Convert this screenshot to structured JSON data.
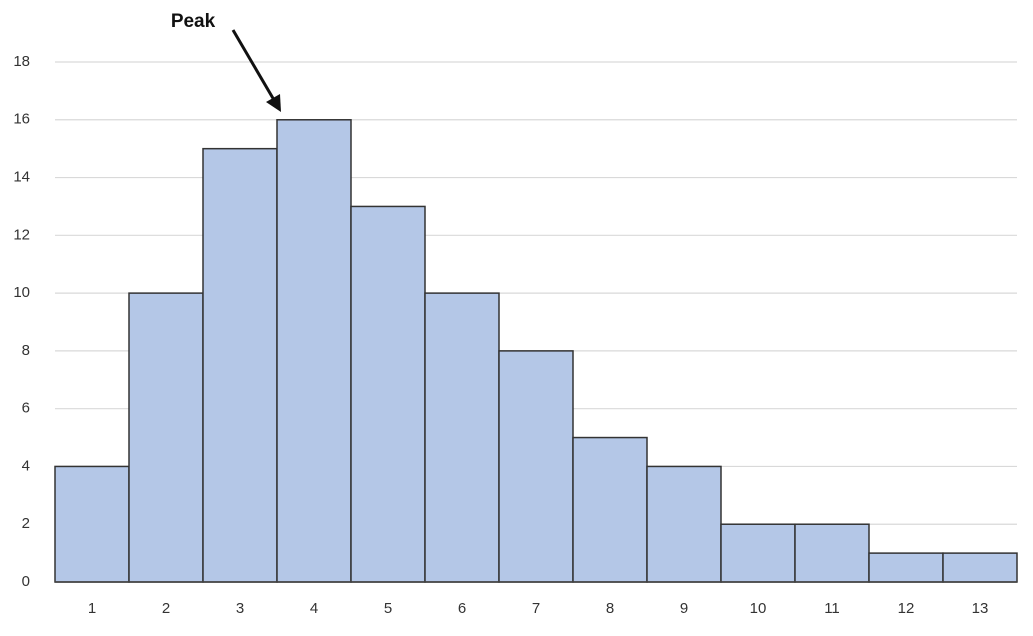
{
  "chart_data": {
    "type": "bar",
    "annotation": "Peak",
    "categories": [
      "1",
      "2",
      "3",
      "4",
      "5",
      "6",
      "7",
      "8",
      "9",
      "10",
      "11",
      "12",
      "13"
    ],
    "values": [
      4,
      10,
      15,
      16,
      13,
      10,
      8,
      5,
      4,
      2,
      2,
      1,
      1
    ],
    "color": "#b4c7e7",
    "ylim": [
      0,
      18
    ],
    "yticks": [
      0,
      2,
      4,
      6,
      8,
      10,
      12,
      14,
      16,
      18
    ],
    "grid": true
  }
}
